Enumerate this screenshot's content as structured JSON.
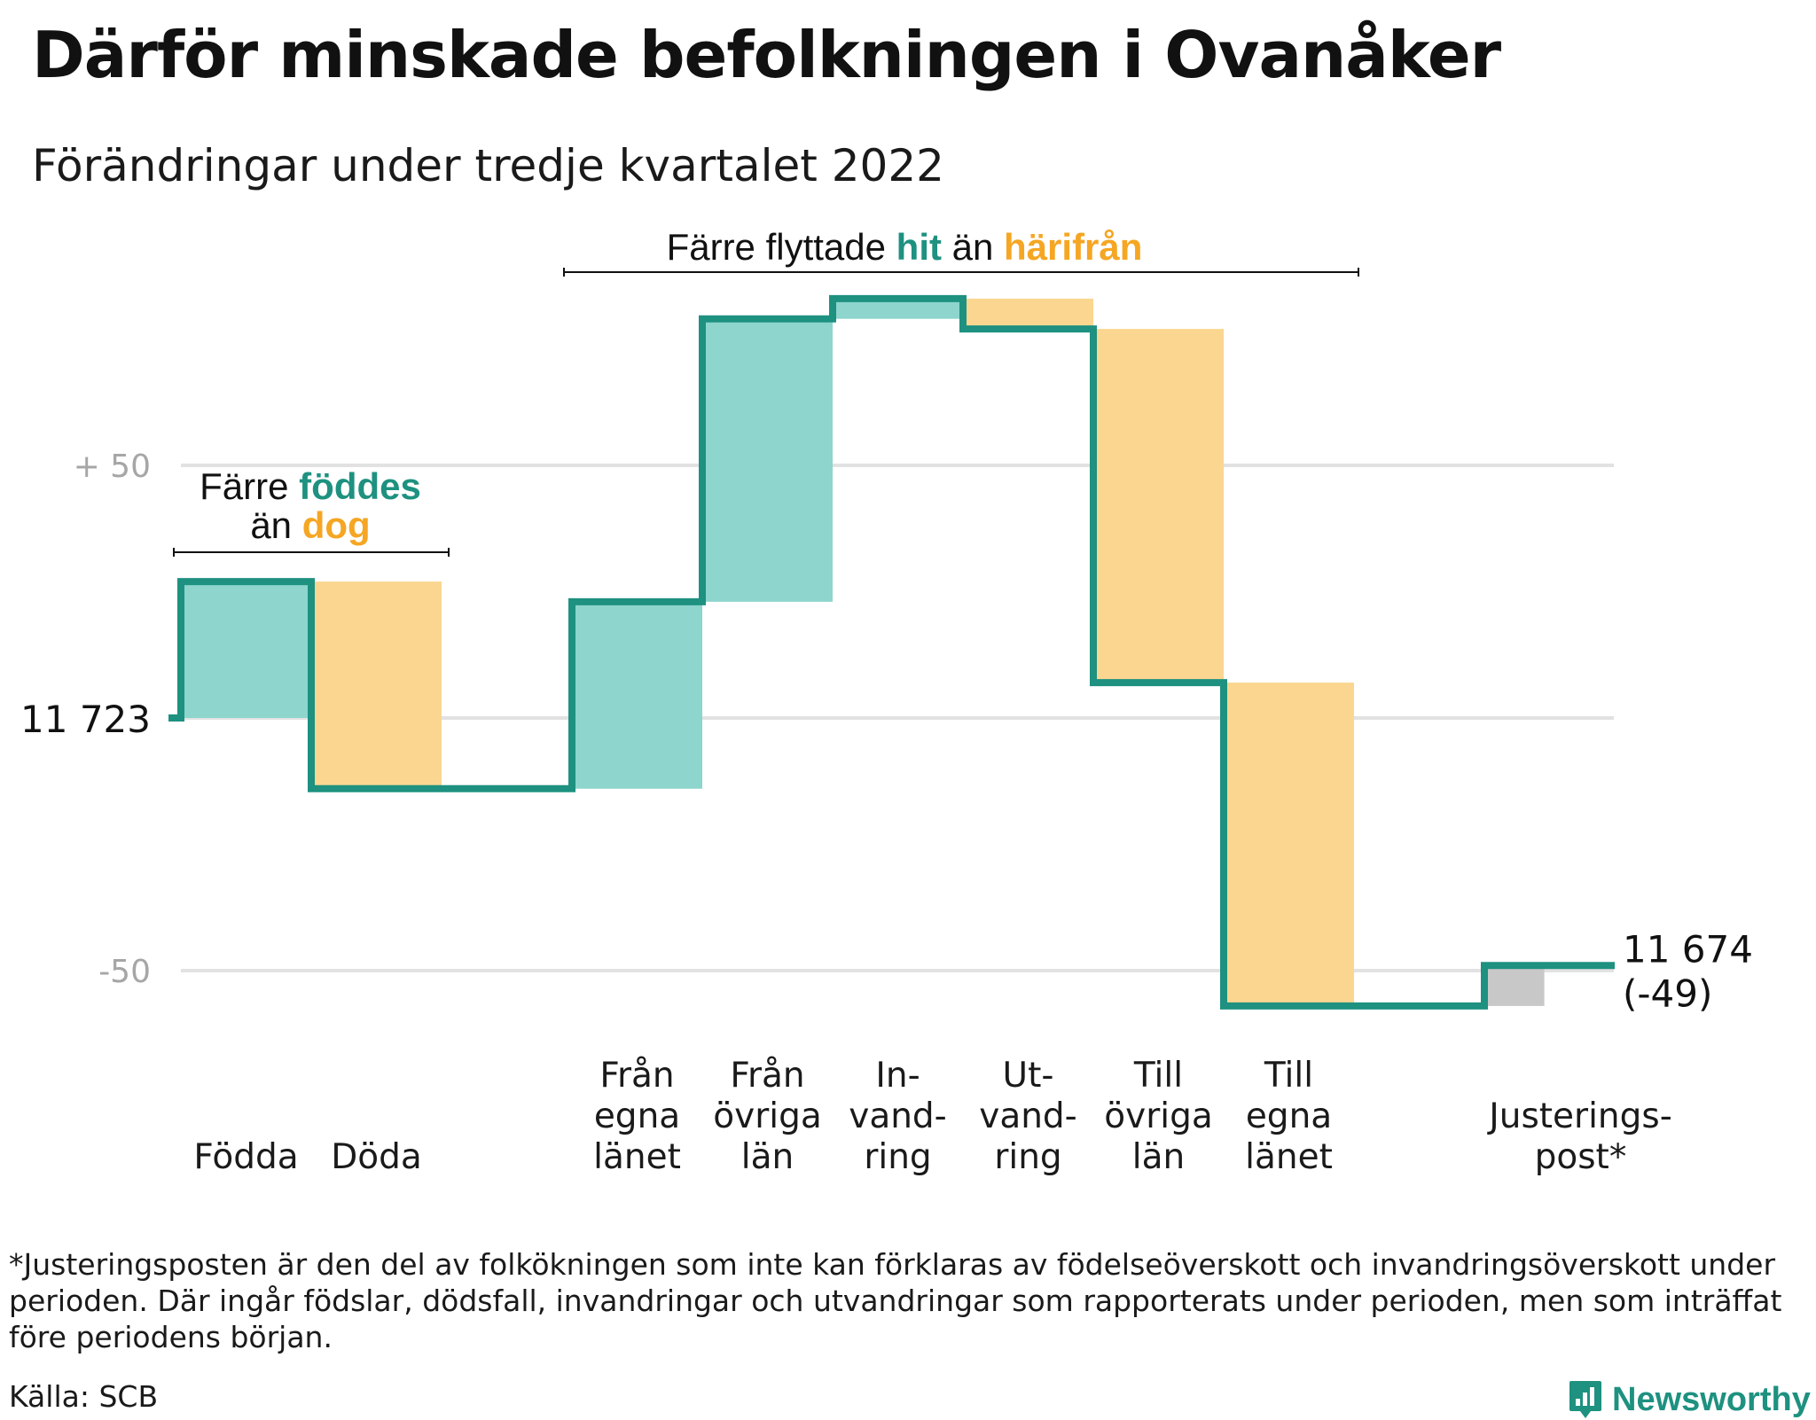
{
  "title": "Därför minskade befolkningen i Ovanåker",
  "subtitle": "Förändringar under tredje kvartalet 2022",
  "chart_data": {
    "type": "waterfall",
    "start_value": 11723,
    "start_label": "11 723",
    "end_value": 11674,
    "end_label": "11 674",
    "change_label": "(-49)",
    "y_ticks": [
      {
        "value": 50,
        "label": "+ 50"
      },
      {
        "value": -50,
        "label": "-50"
      }
    ],
    "ylim": [
      -62,
      85
    ],
    "grid": true,
    "steps": [
      {
        "label": "Födda",
        "label_lines": [
          "Födda"
        ],
        "value": 27,
        "kind": "in"
      },
      {
        "label": "Döda",
        "label_lines": [
          "Döda"
        ],
        "value": -41,
        "kind": "out"
      },
      {
        "label": "",
        "label_lines": [],
        "value": 0,
        "kind": "gap"
      },
      {
        "label": "Från egna länet",
        "label_lines": [
          "Från",
          "egna",
          "länet"
        ],
        "value": 37,
        "kind": "in"
      },
      {
        "label": "Från övriga län",
        "label_lines": [
          "Från",
          "övriga",
          "län"
        ],
        "value": 56,
        "kind": "in"
      },
      {
        "label": "Invandring",
        "label_lines": [
          "In-",
          "vand-",
          "ring"
        ],
        "value": 4,
        "kind": "in"
      },
      {
        "label": "Utvandring",
        "label_lines": [
          "Ut-",
          "vand-",
          "ring"
        ],
        "value": -6,
        "kind": "out"
      },
      {
        "label": "Till övriga län",
        "label_lines": [
          "Till",
          "övriga",
          "län"
        ],
        "value": -70,
        "kind": "out"
      },
      {
        "label": "Till egna länet",
        "label_lines": [
          "Till",
          "egna",
          "länet"
        ],
        "value": -64,
        "kind": "out"
      },
      {
        "label": "",
        "label_lines": [],
        "value": 0,
        "kind": "gap"
      },
      {
        "label": "Justeringspost*",
        "label_lines": [
          "Justerings-",
          "post*"
        ],
        "value": 8,
        "kind": "adjust"
      }
    ],
    "annotations": [
      {
        "parts": [
          {
            "text": "Färre ",
            "color": "#111111"
          },
          {
            "text": "föddes",
            "color": "#1e9180",
            "bold": true
          }
        ],
        "parts2": [
          {
            "text": "än ",
            "color": "#111111"
          },
          {
            "text": "dog",
            "color": "#f5a623",
            "bold": true
          }
        ]
      },
      {
        "parts": [
          {
            "text": "Färre flyttade ",
            "color": "#111111"
          },
          {
            "text": "hit",
            "color": "#1e9180",
            "bold": true
          },
          {
            "text": " än ",
            "color": "#111111"
          },
          {
            "text": "härifrån",
            "color": "#f5a623",
            "bold": true
          }
        ]
      }
    ],
    "colors": {
      "line": "#1e9180",
      "in_fill": "#8dd5cd",
      "out_fill": "#fad690",
      "adjust_fill": "#c8c8c8",
      "grid": "#e2e2e2",
      "tick_text": "#a6a6a6",
      "annotation_teal": "#1e9180",
      "annotation_orange": "#f5a623"
    }
  },
  "footnote": "*Justeringsposten är den del av folkökningen som inte kan förklaras av födelseöverskott och invandringsöverskott under perioden. Där ingår födslar, dödsfall, invandringar och utvandringar som rapporterats under perioden, men som inträffat före periodens början.",
  "source": "Källa: SCB",
  "brand": {
    "name": "Newsworthy",
    "icon": "newsworthy-logo-icon"
  }
}
